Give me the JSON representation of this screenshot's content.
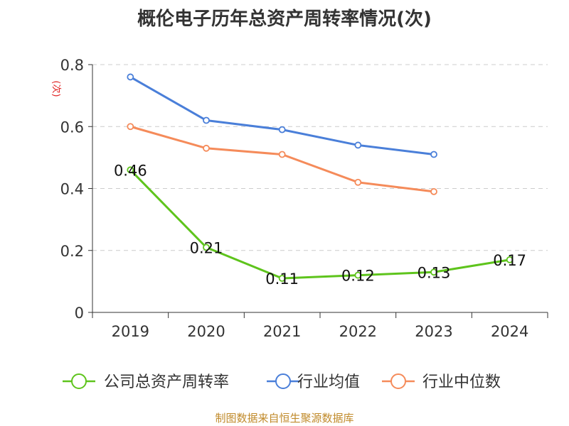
{
  "chart_data": {
    "type": "line",
    "title": "概伦电子历年总资产周转率情况(次)",
    "ylabel": "(次)",
    "xlabel": "",
    "categories": [
      "2019",
      "2020",
      "2021",
      "2022",
      "2023",
      "2024"
    ],
    "ylim": [
      0,
      0.8
    ],
    "yticks": [
      "0",
      "0.2",
      "0.4",
      "0.6",
      "0.8"
    ],
    "ytick_values": [
      0,
      0.2,
      0.4,
      0.6,
      0.8
    ],
    "grid": true,
    "legend_position": "bottom",
    "series": [
      {
        "name": "公司总资产周转率",
        "color": "#5ec41c",
        "values": [
          0.46,
          0.21,
          0.11,
          0.12,
          0.13,
          0.17
        ],
        "labels": [
          "0.46",
          "0.21",
          "0.11",
          "0.12",
          "0.13",
          "0.17"
        ]
      },
      {
        "name": "行业均值",
        "color": "#4a7fd9",
        "values": [
          0.76,
          0.62,
          0.59,
          0.54,
          0.51,
          null
        ]
      },
      {
        "name": "行业中位数",
        "color": "#f58b5a",
        "values": [
          0.6,
          0.53,
          0.51,
          0.42,
          0.39,
          null
        ]
      }
    ]
  },
  "source_note": "制图数据来自恒生聚源数据库"
}
